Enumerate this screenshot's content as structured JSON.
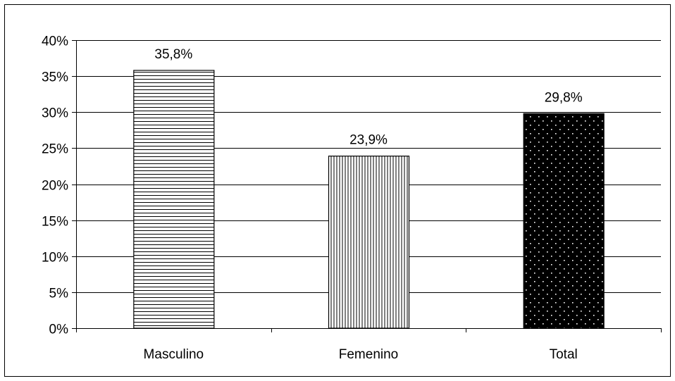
{
  "chart_data": {
    "type": "bar",
    "title": "",
    "xlabel": "",
    "ylabel": "",
    "categories": [
      "Masculino",
      "Femenino",
      "Total"
    ],
    "values": [
      35.8,
      23.9,
      29.8
    ],
    "data_labels": [
      "35,8%",
      "23,9%",
      "29,8%"
    ],
    "ylim": [
      0,
      40
    ],
    "yticks": [
      0,
      5,
      10,
      15,
      20,
      25,
      30,
      35,
      40
    ],
    "ytick_labels": [
      "0%",
      "5%",
      "10%",
      "15%",
      "20%",
      "25%",
      "30%",
      "35%",
      "40%"
    ],
    "grid": true,
    "legend": "none",
    "patterns": [
      "horizontal-lines",
      "vertical-lines",
      "white-dots-on-black"
    ],
    "colors": {
      "bar_stroke": "#000000",
      "grid": "#000000",
      "background": "#ffffff"
    }
  }
}
